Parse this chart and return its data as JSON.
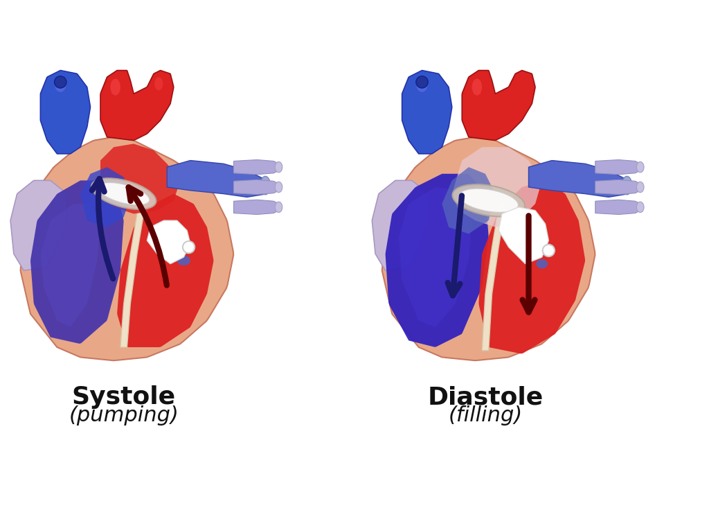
{
  "background_color": "#ffffff",
  "left_label_bold": "Systole",
  "left_label_italic": "(pumping)",
  "right_label_bold": "Diastole",
  "right_label_italic": "(filling)",
  "label_fontsize_bold": 26,
  "label_fontsize_italic": 22,
  "label_color": "#111111",
  "tissue_outer": "#e8a888",
  "tissue_mid": "#d4786a",
  "heart_red_bright": "#dd2222",
  "heart_red_dark": "#aa1111",
  "heart_blue_bright": "#3355dd",
  "heart_blue_dark": "#2233aa",
  "heart_purple": "#5544aa",
  "heart_lavender": "#9988cc",
  "heart_pink_light": "#f0c0b8",
  "aorta_red": "#dd2222",
  "pulm_blue": "#3355cc",
  "pulm_vessels_lavender": "#b0a8d8",
  "pulm_vessels_purple": "#8878b8",
  "arrow_blue_dark": "#1a1a6e",
  "arrow_darkred": "#5a0000",
  "white_structure": "#f0f0f0",
  "cream_wall": "#f0e0c8",
  "septum_color": "#e8d8c0",
  "valve_white": "#ffffff",
  "pale_blue_atrium": "#c8cce8",
  "outer_highlight": "#f5d0c0",
  "blue_vessel_cap": "#4455aa"
}
